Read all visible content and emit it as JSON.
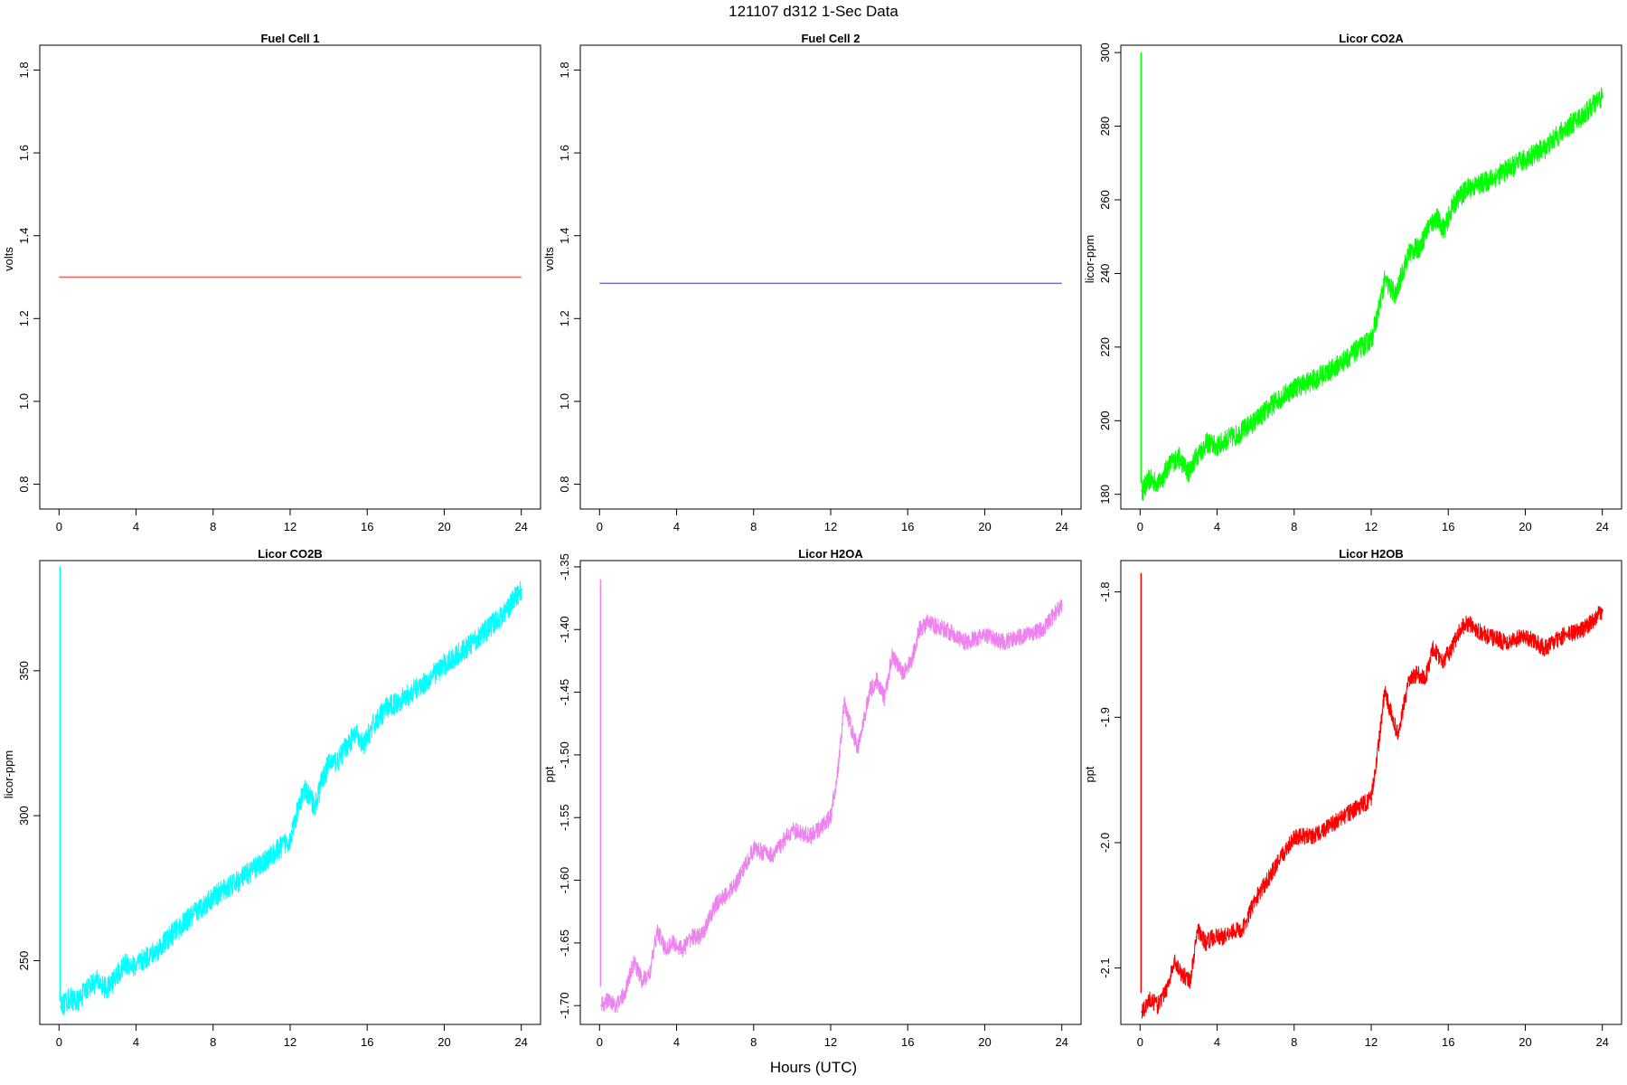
{
  "figure": {
    "title": "121107   d312   1-Sec Data",
    "xlabel": "Hours (UTC)"
  },
  "chart_data": [
    {
      "type": "line",
      "title": "Fuel Cell 1",
      "xlabel": "",
      "ylabel": "volts",
      "xlim": [
        -1,
        25
      ],
      "ylim": [
        0.74,
        1.86
      ],
      "xticks": [
        0,
        4,
        8,
        12,
        16,
        20,
        24
      ],
      "yticks": [
        0.8,
        1.0,
        1.2,
        1.4,
        1.6,
        1.8
      ],
      "color": "#ff5a5a",
      "noise": 0,
      "spike": null,
      "series": [
        {
          "x": [
            0,
            24
          ],
          "y": [
            1.3,
            1.3
          ]
        }
      ]
    },
    {
      "type": "line",
      "title": "Fuel Cell 2",
      "xlabel": "",
      "ylabel": "volts",
      "xlim": [
        -1,
        25
      ],
      "ylim": [
        0.74,
        1.86
      ],
      "xticks": [
        0,
        4,
        8,
        12,
        16,
        20,
        24
      ],
      "yticks": [
        0.8,
        1.0,
        1.2,
        1.4,
        1.6,
        1.8
      ],
      "color": "#6a6aff",
      "noise": 0,
      "spike": null,
      "series": [
        {
          "x": [
            0,
            24
          ],
          "y": [
            1.285,
            1.285
          ]
        }
      ]
    },
    {
      "type": "line",
      "title": "Licor CO2A",
      "xlabel": "",
      "ylabel": "licor-ppm",
      "xlim": [
        -1,
        25
      ],
      "ylim": [
        176,
        302
      ],
      "xticks": [
        0,
        4,
        8,
        12,
        16,
        20,
        24
      ],
      "yticks": [
        180,
        200,
        220,
        240,
        260,
        280,
        300
      ],
      "color": "#00ff00",
      "noise": 3,
      "spike": {
        "x": 0.05,
        "y": [
          183,
          300
        ]
      },
      "series": [
        {
          "x": [
            0.1,
            0.5,
            1,
            1.5,
            2,
            2.5,
            3,
            3.5,
            4,
            4.5,
            5,
            6,
            7,
            8,
            9,
            10,
            11,
            12,
            12.3,
            12.7,
            13,
            13.3,
            13.6,
            14,
            14.5,
            15,
            15.4,
            15.8,
            16.2,
            16.6,
            17,
            18,
            19,
            20,
            21,
            22,
            23,
            24
          ],
          "y": [
            181,
            184,
            183,
            188,
            190,
            186,
            191,
            194,
            193,
            195,
            196,
            200,
            205,
            209,
            211,
            214,
            218,
            222,
            228,
            238,
            236,
            234,
            240,
            246,
            247,
            253,
            255,
            252,
            258,
            261,
            263,
            265,
            268,
            271,
            274,
            279,
            283,
            288
          ]
        }
      ]
    },
    {
      "type": "line",
      "title": "Licor CO2B",
      "xlabel": "",
      "ylabel": "licor-ppm",
      "xlim": [
        -1,
        25
      ],
      "ylim": [
        228,
        388
      ],
      "xticks": [
        0,
        4,
        8,
        12,
        16,
        20,
        24
      ],
      "yticks": [
        250,
        300,
        350
      ],
      "color": "#00ffff",
      "noise": 4,
      "spike": {
        "x": 0.05,
        "y": [
          236,
          386
        ]
      },
      "series": [
        {
          "x": [
            0.1,
            0.5,
            1,
            1.5,
            2,
            2.5,
            3,
            3.5,
            4,
            4.5,
            5,
            6,
            7,
            8,
            9,
            10,
            11,
            12,
            12.3,
            12.7,
            13,
            13.3,
            13.6,
            14,
            14.5,
            15,
            15.4,
            15.8,
            16.2,
            16.6,
            17,
            18,
            19,
            20,
            21,
            22,
            23,
            24
          ],
          "y": [
            234,
            237,
            236,
            241,
            243,
            240,
            245,
            249,
            248,
            251,
            253,
            260,
            266,
            272,
            276,
            281,
            286,
            292,
            299,
            309,
            307,
            303,
            311,
            318,
            319,
            325,
            328,
            324,
            330,
            334,
            337,
            341,
            346,
            352,
            357,
            363,
            369,
            378
          ]
        }
      ]
    },
    {
      "type": "line",
      "title": "Licor H2OA",
      "xlabel": "",
      "ylabel": "ppt",
      "xlim": [
        -1,
        25
      ],
      "ylim": [
        -1.715,
        -1.345
      ],
      "xticks": [
        0,
        4,
        8,
        12,
        16,
        20,
        24
      ],
      "yticks": [
        -1.7,
        -1.65,
        -1.6,
        -1.55,
        -1.5,
        -1.45,
        -1.4,
        -1.35
      ],
      "color": "#ee82ee",
      "noise": 0.007,
      "spike": {
        "x": 0.05,
        "y": [
          -1.685,
          -1.36
        ]
      },
      "series": [
        {
          "x": [
            0.1,
            0.5,
            0.9,
            1.3,
            1.8,
            2.2,
            2.6,
            3,
            3.4,
            3.8,
            4.3,
            4.8,
            5.3,
            6,
            7,
            8,
            9,
            10,
            11,
            12,
            12.4,
            12.7,
            13,
            13.4,
            13.7,
            14,
            14.4,
            14.8,
            15.2,
            15.7,
            16.2,
            16.6,
            17,
            18,
            19,
            20,
            21,
            22,
            23,
            24
          ],
          "y": [
            -1.7,
            -1.695,
            -1.7,
            -1.69,
            -1.665,
            -1.68,
            -1.675,
            -1.64,
            -1.655,
            -1.65,
            -1.655,
            -1.645,
            -1.645,
            -1.62,
            -1.605,
            -1.575,
            -1.58,
            -1.56,
            -1.565,
            -1.55,
            -1.51,
            -1.46,
            -1.475,
            -1.495,
            -1.475,
            -1.45,
            -1.44,
            -1.455,
            -1.42,
            -1.435,
            -1.425,
            -1.4,
            -1.395,
            -1.4,
            -1.41,
            -1.405,
            -1.41,
            -1.405,
            -1.4,
            -1.38
          ]
        }
      ]
    },
    {
      "type": "line",
      "title": "Licor H2OB",
      "xlabel": "",
      "ylabel": "ppt",
      "xlim": [
        -1,
        25
      ],
      "ylim": [
        -2.145,
        -1.775
      ],
      "xticks": [
        0,
        4,
        8,
        12,
        16,
        20,
        24
      ],
      "yticks": [
        -2.1,
        -2.0,
        -1.9,
        -1.8
      ],
      "color": "#ff0000",
      "noise": 0.007,
      "spike": {
        "x": 0.05,
        "y": [
          -2.12,
          -1.785
        ]
      },
      "series": [
        {
          "x": [
            0.1,
            0.5,
            0.9,
            1.3,
            1.8,
            2.2,
            2.6,
            3,
            3.4,
            3.8,
            4.3,
            4.8,
            5.3,
            6,
            7,
            8,
            9,
            10,
            11,
            12,
            12.4,
            12.7,
            13,
            13.4,
            13.7,
            14,
            14.4,
            14.8,
            15.2,
            15.7,
            16.2,
            16.6,
            17,
            18,
            19,
            20,
            21,
            22,
            23,
            24
          ],
          "y": [
            -2.135,
            -2.125,
            -2.13,
            -2.12,
            -2.095,
            -2.105,
            -2.11,
            -2.07,
            -2.08,
            -2.075,
            -2.075,
            -2.07,
            -2.07,
            -2.045,
            -2.02,
            -1.995,
            -1.995,
            -1.985,
            -1.975,
            -1.965,
            -1.92,
            -1.88,
            -1.895,
            -1.915,
            -1.89,
            -1.87,
            -1.865,
            -1.87,
            -1.845,
            -1.855,
            -1.845,
            -1.83,
            -1.825,
            -1.835,
            -1.84,
            -1.835,
            -1.845,
            -1.835,
            -1.83,
            -1.815
          ]
        }
      ]
    }
  ]
}
